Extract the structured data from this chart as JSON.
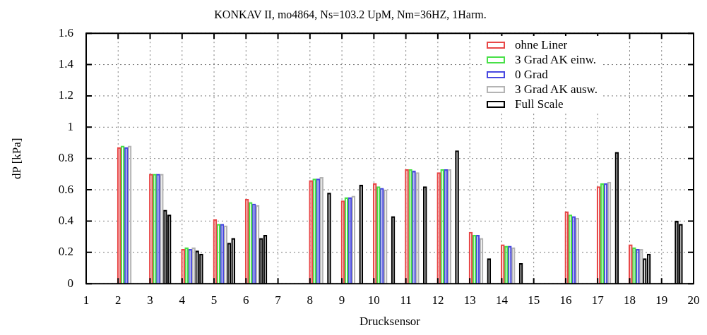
{
  "chart_data": {
    "type": "bar",
    "title": "KONKAV II, mo4864, Ns=103.2 UpM, Nm=36HZ, 1Harm.",
    "xlabel": "Drucksensor",
    "ylabel": "dP [kPa]",
    "xlim": [
      1,
      20
    ],
    "xticks": [
      1,
      2,
      3,
      4,
      5,
      6,
      7,
      8,
      9,
      10,
      11,
      12,
      13,
      14,
      15,
      16,
      17,
      18,
      19,
      20
    ],
    "ylim": [
      0,
      1.6
    ],
    "yticks": [
      0,
      0.2,
      0.4,
      0.6,
      0.8,
      1,
      1.2,
      1.4,
      1.6
    ],
    "grid": true,
    "legend": "top right",
    "series": [
      {
        "name": "ohne Liner",
        "color": "#e84848",
        "x": [
          2.03,
          3.03,
          4.03,
          5.03,
          6.03,
          8.03,
          9.03,
          10.03,
          11.03,
          12.03,
          13.03,
          14.03,
          16.03,
          17.03,
          18.03
        ],
        "values": [
          0.87,
          0.7,
          0.22,
          0.41,
          0.54,
          0.66,
          0.53,
          0.64,
          0.73,
          0.71,
          0.33,
          0.25,
          0.46,
          0.62,
          0.25
        ]
      },
      {
        "name": "3 Grad AK einw.",
        "color": "#48e048",
        "x": [
          2.14,
          3.14,
          4.14,
          5.14,
          6.14,
          8.14,
          9.14,
          10.14,
          11.14,
          12.14,
          13.14,
          14.14,
          16.14,
          17.14,
          18.14
        ],
        "values": [
          0.88,
          0.7,
          0.23,
          0.38,
          0.52,
          0.67,
          0.55,
          0.62,
          0.73,
          0.73,
          0.31,
          0.24,
          0.44,
          0.64,
          0.23
        ]
      },
      {
        "name": "0 Grad",
        "color": "#4848e0",
        "x": [
          2.25,
          3.25,
          4.25,
          5.25,
          6.25,
          8.25,
          9.25,
          10.25,
          11.25,
          12.25,
          13.25,
          14.25,
          16.25,
          17.25,
          18.25
        ],
        "values": [
          0.87,
          0.7,
          0.22,
          0.38,
          0.51,
          0.67,
          0.55,
          0.61,
          0.72,
          0.73,
          0.31,
          0.24,
          0.43,
          0.64,
          0.22
        ]
      },
      {
        "name": "3 Grad AK ausw.",
        "color": "#b4b4b4",
        "x": [
          2.36,
          3.36,
          4.36,
          5.36,
          6.36,
          8.36,
          9.36,
          10.36,
          11.36,
          12.36,
          13.36,
          14.36,
          16.36,
          17.36,
          18.36
        ],
        "values": [
          0.88,
          0.7,
          0.23,
          0.37,
          0.5,
          0.68,
          0.56,
          0.6,
          0.71,
          0.73,
          0.29,
          0.23,
          0.42,
          0.65,
          0.22
        ]
      },
      {
        "name": "Full Scale",
        "color": "#000000",
        "x": [
          3.47,
          3.6,
          4.47,
          4.6,
          5.47,
          5.6,
          6.47,
          6.6,
          8.6,
          9.6,
          10.6,
          11.6,
          12.6,
          13.6,
          14.6,
          17.6,
          18.47,
          18.6,
          19.47,
          19.6
        ],
        "values": [
          0.47,
          0.44,
          0.21,
          0.19,
          0.26,
          0.29,
          0.29,
          0.31,
          0.58,
          0.63,
          0.43,
          0.62,
          0.85,
          0.16,
          0.13,
          0.84,
          0.16,
          0.19,
          0.4,
          0.38
        ]
      }
    ]
  }
}
